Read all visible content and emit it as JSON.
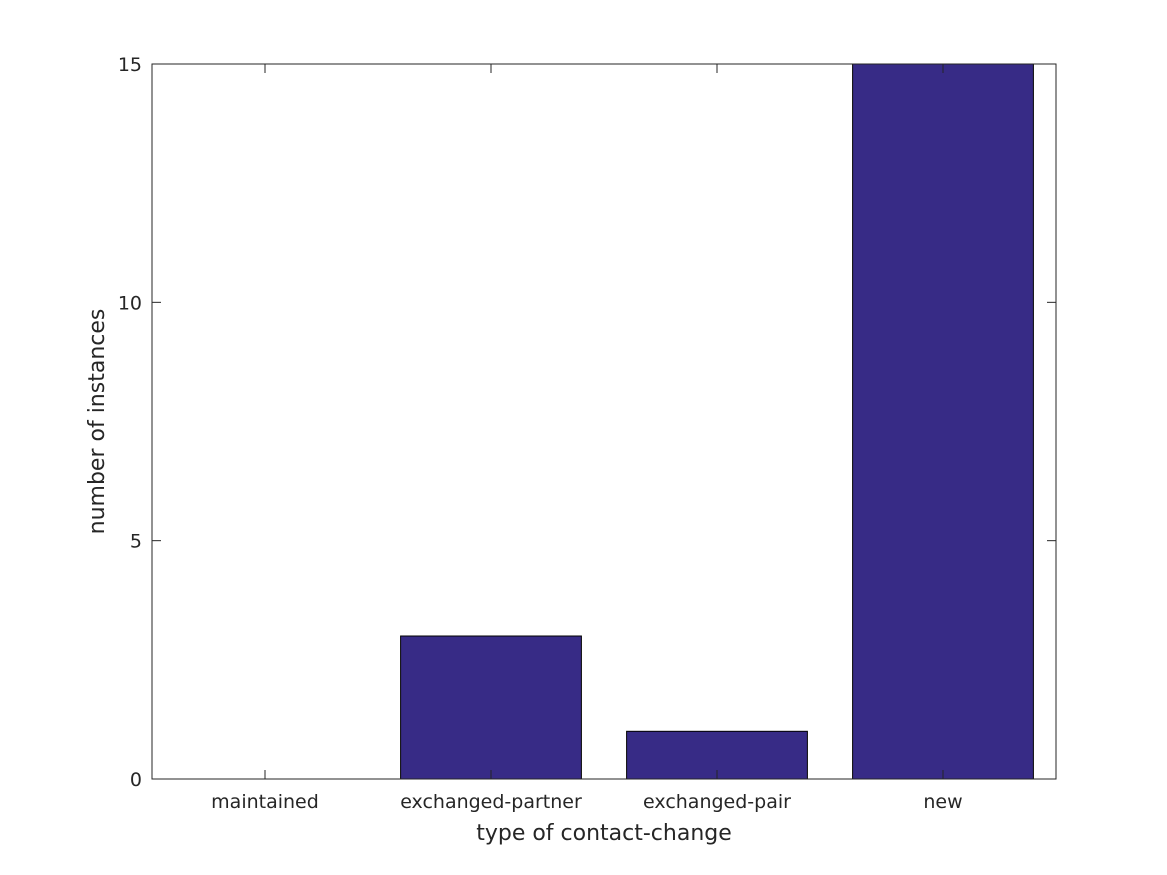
{
  "chart_data": {
    "type": "bar",
    "categories": [
      "maintained",
      "exchanged-partner",
      "exchanged-pair",
      "new"
    ],
    "values": [
      0,
      3,
      1,
      15
    ],
    "title": "",
    "xlabel": "type of contact-change",
    "ylabel": "number of instances",
    "ylim": [
      0,
      15
    ],
    "yticks": [
      0,
      5,
      10,
      15
    ],
    "grid": false,
    "legend": "none",
    "bar_color": "#372b86",
    "bar_edge_color": "#000000",
    "axis_color": "#262626"
  }
}
